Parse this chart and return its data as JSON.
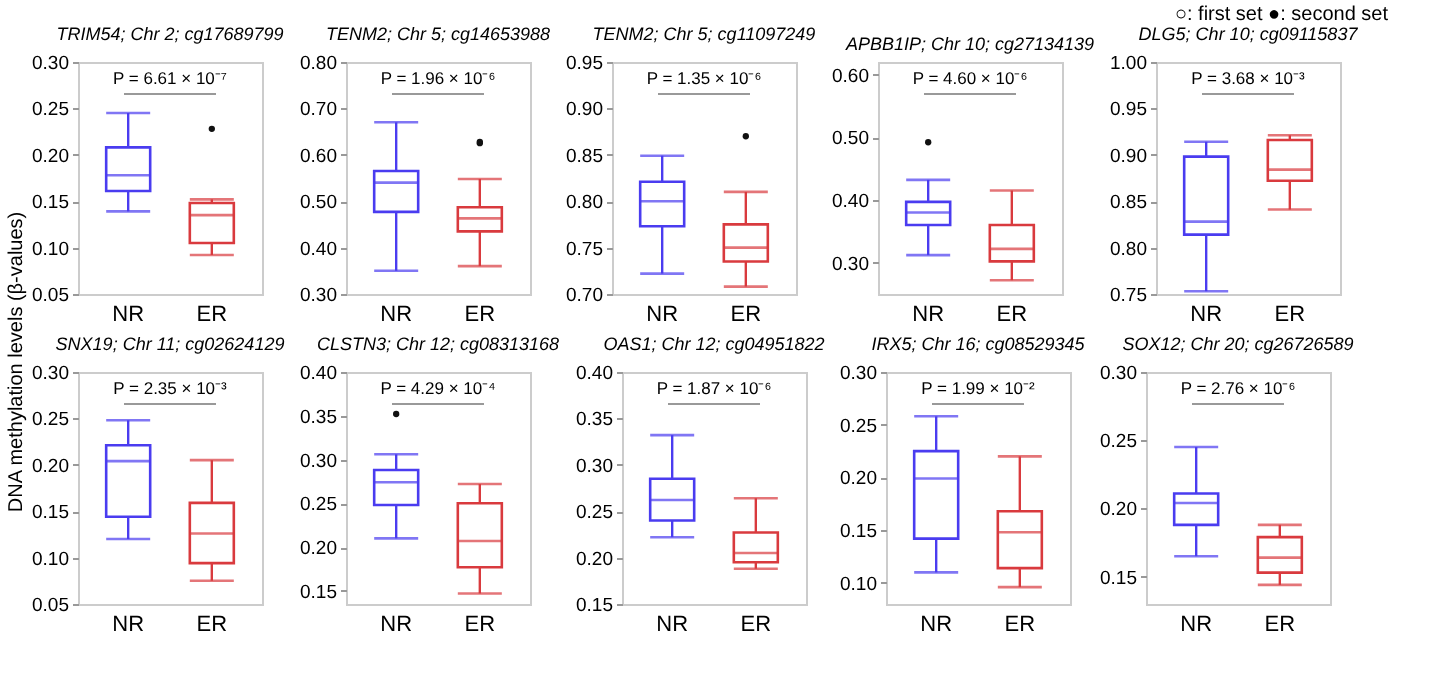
{
  "chart_data": [
    {
      "type": "box",
      "title": "TRIM54; Chr 2; cg17689799",
      "ylabel": "DNA methylation levels (β-values)",
      "categories": [
        "NR",
        "ER"
      ],
      "colors": [
        "#4a3cf0",
        "#d93a3e"
      ],
      "boxes": [
        {
          "low": 0.139,
          "q1": 0.161,
          "median": 0.178,
          "q3": 0.208,
          "high": 0.245
        },
        {
          "low": 0.092,
          "q1": 0.105,
          "median": 0.135,
          "q3": 0.148,
          "high": 0.152,
          "outliers": [
            0.228
          ]
        }
      ],
      "ylim": [
        0.05,
        0.3
      ],
      "yticks": [
        {
          "value": 0.05,
          "label": "0.05"
        },
        {
          "value": 0.1,
          "label": "0.10"
        },
        {
          "value": 0.15,
          "label": "0.15"
        },
        {
          "value": 0.2,
          "label": "0.20"
        },
        {
          "value": 0.25,
          "label": "0.25"
        },
        {
          "value": 0.3,
          "label": "0.30"
        }
      ],
      "annotations": [
        "P = 6.61 × 10⁻⁷"
      ]
    },
    {
      "type": "box",
      "title": "TENM2; Chr 5; cg14653988",
      "categories": [
        "NR",
        "ER"
      ],
      "colors": [
        "#4a3cf0",
        "#d93a3e"
      ],
      "boxes": [
        {
          "low": 0.35,
          "q1": 0.477,
          "median": 0.54,
          "q3": 0.565,
          "high": 0.67
        },
        {
          "low": 0.36,
          "q1": 0.435,
          "median": 0.463,
          "q3": 0.487,
          "high": 0.548,
          "outliers": [
            0.625,
            0.628
          ]
        }
      ],
      "ylim": [
        0.3,
        0.8
      ],
      "yticks": [
        {
          "value": 0.3,
          "label": "0.30"
        },
        {
          "value": 0.4,
          "label": "0.40"
        },
        {
          "value": 0.5,
          "label": "0.50"
        },
        {
          "value": 0.6,
          "label": "0.60"
        },
        {
          "value": 0.7,
          "label": "0.70"
        },
        {
          "value": 0.8,
          "label": "0.80"
        }
      ],
      "annotations": [
        "P = 1.96 × 10⁻⁶"
      ]
    },
    {
      "type": "box",
      "title": "TENM2; Chr 5; cg11097249",
      "categories": [
        "NR",
        "ER"
      ],
      "colors": [
        "#4a3cf0",
        "#d93a3e"
      ],
      "boxes": [
        {
          "low": 0.722,
          "q1": 0.773,
          "median": 0.8,
          "q3": 0.821,
          "high": 0.849
        },
        {
          "low": 0.708,
          "q1": 0.735,
          "median": 0.75,
          "q3": 0.775,
          "high": 0.81,
          "outliers": [
            0.87
          ]
        }
      ],
      "ylim": [
        0.7,
        0.95
      ],
      "yticks": [
        {
          "value": 0.7,
          "label": "0.70"
        },
        {
          "value": 0.75,
          "label": "0.75"
        },
        {
          "value": 0.8,
          "label": "0.80"
        },
        {
          "value": 0.85,
          "label": "0.85"
        },
        {
          "value": 0.9,
          "label": "0.90"
        },
        {
          "value": 0.95,
          "label": "0.95"
        }
      ],
      "annotations": [
        "P = 1.35 × 10⁻⁶"
      ]
    },
    {
      "type": "box",
      "title": "APBB1IP; Chr 10; cg27134139",
      "categories": [
        "NR",
        "ER"
      ],
      "colors": [
        "#4a3cf0",
        "#d93a3e"
      ],
      "boxes": [
        {
          "low": 0.312,
          "q1": 0.36,
          "median": 0.38,
          "q3": 0.397,
          "high": 0.432,
          "outliers": [
            0.492
          ]
        },
        {
          "low": 0.272,
          "q1": 0.302,
          "median": 0.322,
          "q3": 0.36,
          "high": 0.415
        }
      ],
      "ylim": [
        0.25,
        0.62
      ],
      "yticks": [
        {
          "value": 0.3,
          "label": "0.30"
        },
        {
          "value": 0.4,
          "label": "0.40"
        },
        {
          "value": 0.5,
          "label": "0.50"
        },
        {
          "value": 0.6,
          "label": "0.60"
        }
      ],
      "annotations": [
        "P = 4.60 × 10⁻⁶"
      ]
    },
    {
      "type": "box",
      "title": "DLG5; Chr 10; cg09115837",
      "categories": [
        "NR",
        "ER"
      ],
      "colors": [
        "#4a3cf0",
        "#d93a3e"
      ],
      "boxes": [
        {
          "low": 0.753,
          "q1": 0.814,
          "median": 0.828,
          "q3": 0.898,
          "high": 0.914
        },
        {
          "low": 0.841,
          "q1": 0.872,
          "median": 0.884,
          "q3": 0.916,
          "high": 0.921
        }
      ],
      "ylim": [
        0.75,
        1.0
      ],
      "yticks": [
        {
          "value": 0.75,
          "label": "0.75"
        },
        {
          "value": 0.8,
          "label": "0.80"
        },
        {
          "value": 0.85,
          "label": "0.85"
        },
        {
          "value": 0.9,
          "label": "0.90"
        },
        {
          "value": 0.95,
          "label": "0.95"
        },
        {
          "value": 1.0,
          "label": "1.00"
        }
      ],
      "annotations": [
        "P = 3.68 × 10⁻³",
        "○: first set  ●: second set"
      ]
    },
    {
      "type": "box",
      "title": "SNX19; Chr 11; cg02624129",
      "categories": [
        "NR",
        "ER"
      ],
      "colors": [
        "#4a3cf0",
        "#d93a3e"
      ],
      "boxes": [
        {
          "low": 0.12,
          "q1": 0.144,
          "median": 0.204,
          "q3": 0.221,
          "high": 0.248
        },
        {
          "low": 0.075,
          "q1": 0.094,
          "median": 0.126,
          "q3": 0.159,
          "high": 0.205
        }
      ],
      "ylim": [
        0.05,
        0.3
      ],
      "yticks": [
        {
          "value": 0.05,
          "label": "0.05"
        },
        {
          "value": 0.1,
          "label": "0.10"
        },
        {
          "value": 0.15,
          "label": "0.15"
        },
        {
          "value": 0.2,
          "label": "0.20"
        },
        {
          "value": 0.25,
          "label": "0.25"
        },
        {
          "value": 0.3,
          "label": "0.30"
        }
      ],
      "annotations": [
        "P = 2.35 × 10⁻³"
      ]
    },
    {
      "type": "box",
      "title": "CLSTN3; Chr 12; cg08313168",
      "categories": [
        "NR",
        "ER"
      ],
      "colors": [
        "#4a3cf0",
        "#d93a3e"
      ],
      "boxes": [
        {
          "low": 0.21,
          "q1": 0.248,
          "median": 0.274,
          "q3": 0.288,
          "high": 0.306,
          "outliers": [
            0.352
          ]
        },
        {
          "low": 0.147,
          "q1": 0.177,
          "median": 0.207,
          "q3": 0.25,
          "high": 0.272
        }
      ],
      "ylim": [
        0.135,
        0.4
      ],
      "yticks": [
        {
          "value": 0.15,
          "label": "0.15"
        },
        {
          "value": 0.2,
          "label": "0.20"
        },
        {
          "value": 0.25,
          "label": "0.25"
        },
        {
          "value": 0.3,
          "label": "0.30"
        },
        {
          "value": 0.35,
          "label": "0.35"
        },
        {
          "value": 0.4,
          "label": "0.40"
        }
      ],
      "annotations": [
        "P = 4.29 × 10⁻⁴"
      ]
    },
    {
      "type": "box",
      "title": "OAS1; Chr 12; cg04951822",
      "categories": [
        "NR",
        "ER"
      ],
      "colors": [
        "#4a3cf0",
        "#d93a3e"
      ],
      "boxes": [
        {
          "low": 0.222,
          "q1": 0.24,
          "median": 0.262,
          "q3": 0.285,
          "high": 0.332
        },
        {
          "low": 0.188,
          "q1": 0.195,
          "median": 0.205,
          "q3": 0.227,
          "high": 0.264
        }
      ],
      "ylim": [
        0.15,
        0.4
      ],
      "yticks": [
        {
          "value": 0.15,
          "label": "0.15"
        },
        {
          "value": 0.2,
          "label": "0.20"
        },
        {
          "value": 0.25,
          "label": "0.25"
        },
        {
          "value": 0.3,
          "label": "0.30"
        },
        {
          "value": 0.35,
          "label": "0.35"
        },
        {
          "value": 0.4,
          "label": "0.40"
        }
      ],
      "annotations": [
        "P = 1.87 × 10⁻⁶"
      ]
    },
    {
      "type": "box",
      "title": "IRX5; Chr 16; cg08529345",
      "categories": [
        "NR",
        "ER"
      ],
      "colors": [
        "#4a3cf0",
        "#d93a3e"
      ],
      "boxes": [
        {
          "low": 0.11,
          "q1": 0.142,
          "median": 0.199,
          "q3": 0.225,
          "high": 0.258
        },
        {
          "low": 0.096,
          "q1": 0.114,
          "median": 0.148,
          "q3": 0.168,
          "high": 0.22
        }
      ],
      "ylim": [
        0.08,
        0.3
      ],
      "yticks": [
        {
          "value": 0.1,
          "label": "0.10"
        },
        {
          "value": 0.15,
          "label": "0.15"
        },
        {
          "value": 0.2,
          "label": "0.20"
        },
        {
          "value": 0.25,
          "label": "0.25"
        },
        {
          "value": 0.3,
          "label": "0.30"
        }
      ],
      "annotations": [
        "P = 1.99 × 10⁻²"
      ]
    },
    {
      "type": "box",
      "title": "SOX12; Chr 20; cg26726589",
      "categories": [
        "NR",
        "ER"
      ],
      "colors": [
        "#4a3cf0",
        "#d93a3e"
      ],
      "boxes": [
        {
          "low": 0.165,
          "q1": 0.188,
          "median": 0.204,
          "q3": 0.211,
          "high": 0.245
        },
        {
          "low": 0.144,
          "q1": 0.153,
          "median": 0.164,
          "q3": 0.179,
          "high": 0.188
        }
      ],
      "ylim": [
        0.13,
        0.3
      ],
      "yticks": [
        {
          "value": 0.15,
          "label": "0.15"
        },
        {
          "value": 0.2,
          "label": "0.20"
        },
        {
          "value": 0.25,
          "label": "0.25"
        },
        {
          "value": 0.3,
          "label": "0.30"
        }
      ],
      "annotations": [
        "P = 2.76 × 10⁻⁶"
      ]
    }
  ]
}
